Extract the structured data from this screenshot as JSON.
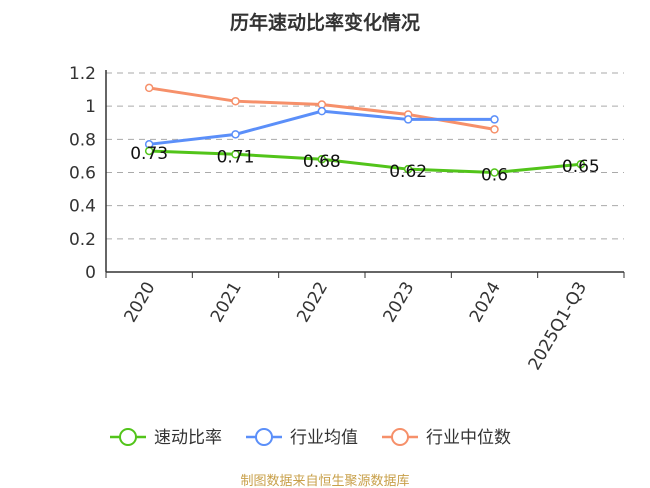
{
  "chart_data": {
    "type": "line",
    "title": "历年速动比率变化情况",
    "categories": [
      "2020",
      "2021",
      "2022",
      "2023",
      "2024",
      "2025Q1-Q3"
    ],
    "ylim": [
      0,
      1.2
    ],
    "yticks": [
      "0",
      "0.2",
      "0.4",
      "0.6",
      "0.8",
      "1",
      "1.2"
    ],
    "grid": true,
    "legend_position": "bottom",
    "series": [
      {
        "name": "速动比率",
        "color": "#52c41a",
        "values": [
          0.73,
          0.71,
          0.68,
          0.62,
          0.6,
          0.65
        ],
        "labels": [
          "0.73",
          "0.71",
          "0.68",
          "0.62",
          "0.6",
          "0.65"
        ]
      },
      {
        "name": "行业均值",
        "color": "#5b8ff9",
        "values": [
          0.77,
          0.83,
          0.97,
          0.92,
          0.92,
          null
        ]
      },
      {
        "name": "行业中位数",
        "color": "#f6906a",
        "values": [
          1.11,
          1.03,
          1.01,
          0.95,
          0.86,
          null
        ]
      }
    ]
  },
  "source": "制图数据来自恒生聚源数据库"
}
